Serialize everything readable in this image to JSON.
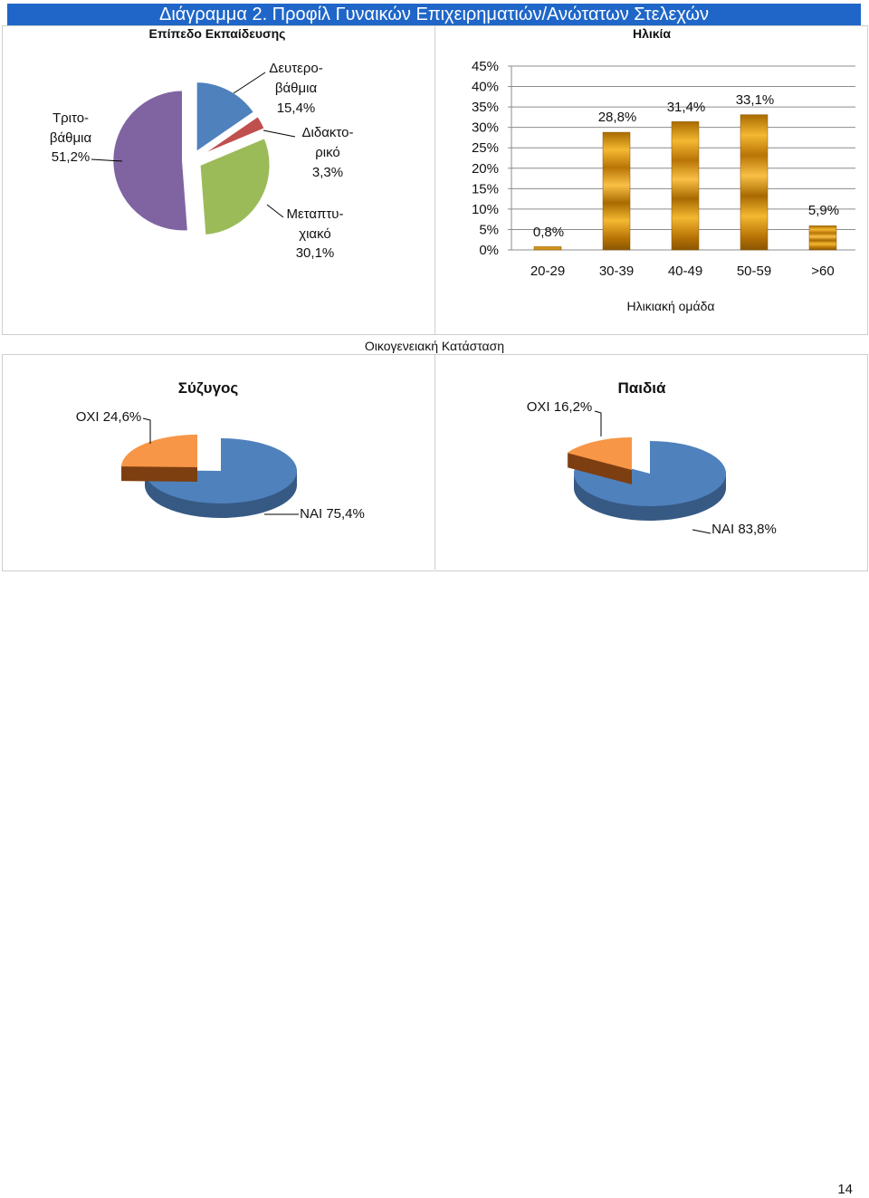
{
  "title": "Διάγραμμα 2. Προφίλ Γυναικών Επιχειρηματιών/Ανώτατων Στελεχών",
  "headers": {
    "education": "Επίπεδο Εκπαίδευσης",
    "age": "Ηλικία",
    "family": "Οικογενειακή Κατάσταση"
  },
  "chart_data": [
    {
      "type": "pie",
      "title": "Επίπεδο Εκπαίδευσης",
      "slices": [
        {
          "label_lines": [
            "Δευτερο-",
            "βάθμια"
          ],
          "value_label": "15,4%",
          "value": 15.4,
          "color": "#4f81bd"
        },
        {
          "label_lines": [
            "Διδακτο-",
            "ρικό"
          ],
          "value_label": "3,3%",
          "value": 3.3,
          "color": "#c0504d"
        },
        {
          "label_lines": [
            "Μεταπτυ-",
            "χιακό"
          ],
          "value_label": "30,1%",
          "value": 30.1,
          "color": "#9bbb59"
        },
        {
          "label_lines": [
            "Τριτο-",
            "βάθμια"
          ],
          "value_label": "51,2%",
          "value": 51.2,
          "color": "#8064a2"
        }
      ]
    },
    {
      "type": "bar",
      "title": "Ηλικία",
      "xlabel": "Ηλικιακή ομάδα",
      "categories": [
        "20-29",
        "30-39",
        "40-49",
        "50-59",
        ">60"
      ],
      "values": [
        0.8,
        28.8,
        31.4,
        33.1,
        5.9
      ],
      "value_labels": [
        "0,8%",
        "28,8%",
        "31,4%",
        "33,1%",
        "5,9%"
      ],
      "yticks": [
        "0%",
        "5%",
        "10%",
        "15%",
        "20%",
        "25%",
        "30%",
        "35%",
        "40%",
        "45%"
      ],
      "ylim": [
        0,
        45
      ],
      "grid": true,
      "color": "#d99a0f"
    },
    {
      "type": "pie",
      "title": "Σύζυγος",
      "slices": [
        {
          "label": "ΟΧΙ 24,6%",
          "value": 24.6,
          "color": "#f79646"
        },
        {
          "label": "ΝΑΙ 75,4%",
          "value": 75.4,
          "color": "#4f81bd"
        }
      ]
    },
    {
      "type": "pie",
      "title": "Παιδιά",
      "slices": [
        {
          "label": "ΟΧΙ 16,2%",
          "value": 16.2,
          "color": "#f79646"
        },
        {
          "label": "ΝΑΙ 83,8%",
          "value": 83.8,
          "color": "#4f81bd"
        }
      ]
    }
  ],
  "page_number": "14"
}
